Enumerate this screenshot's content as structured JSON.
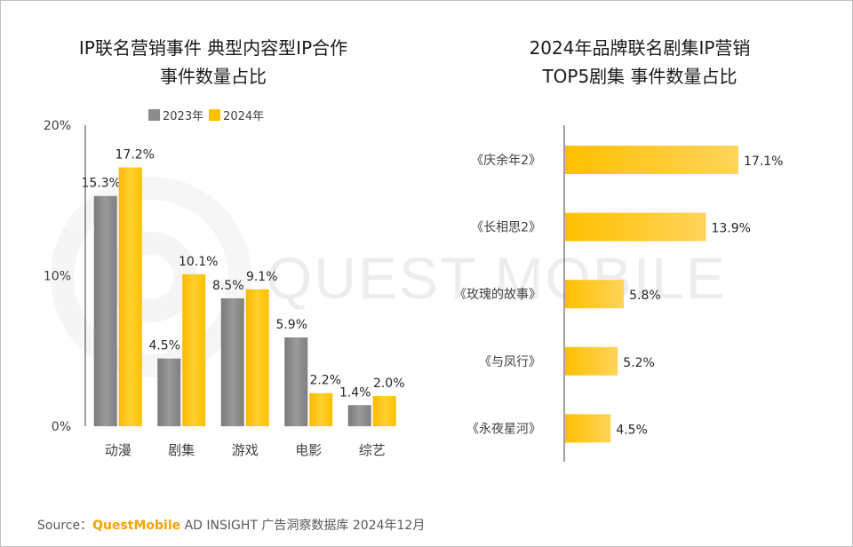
{
  "watermark": "QUEST MOBILE",
  "left_chart": {
    "title_line1": "IP联名营销事件 典型内容型IP合作",
    "title_line2": "事件数量占比",
    "legend": [
      "2023年",
      "2024年"
    ]
  },
  "right_chart": {
    "title_line1": "2024年品牌联名剧集IP营销",
    "title_line2": "TOP5剧集 事件数量占比"
  },
  "source": {
    "prefix": "Source：",
    "brand": "QuestMobile",
    "suffix": " AD INSIGHT 广告洞察数据库 2024年12月"
  },
  "colors": {
    "grey": "#8c8c8c",
    "yellow": "#ffc000",
    "yellow_light": "#ffd966",
    "axis": "#404040"
  },
  "chart_data": [
    {
      "type": "bar",
      "title": "IP联名营销事件 典型内容型IP合作 事件数量占比",
      "categories": [
        "动漫",
        "剧集",
        "游戏",
        "电影",
        "综艺"
      ],
      "series": [
        {
          "name": "2023年",
          "values": [
            15.3,
            4.5,
            8.5,
            5.9,
            1.4
          ],
          "labels": [
            "15.3%",
            "4.5%",
            "8.5%",
            "5.9%",
            "1.4%"
          ]
        },
        {
          "name": "2024年",
          "values": [
            17.2,
            10.1,
            9.1,
            2.2,
            2.0
          ],
          "labels": [
            "17.2%",
            "10.1%",
            "9.1%",
            "2.2%",
            "2.0%"
          ]
        }
      ],
      "yticks": [
        "0%",
        "10%",
        "20%"
      ],
      "ylim": [
        0,
        20
      ]
    },
    {
      "type": "bar",
      "orientation": "horizontal",
      "title": "2024年品牌联名剧集IP营销 TOP5剧集 事件数量占比",
      "categories": [
        "《庆余年2》",
        "《长相思2》",
        "《玫瑰的故事》",
        "《与凤行》",
        "《永夜星河》"
      ],
      "values": [
        17.1,
        13.9,
        5.8,
        5.2,
        4.5
      ],
      "labels": [
        "17.1%",
        "13.9%",
        "5.8%",
        "5.2%",
        "4.5%"
      ],
      "xlim": [
        0,
        20
      ]
    }
  ]
}
